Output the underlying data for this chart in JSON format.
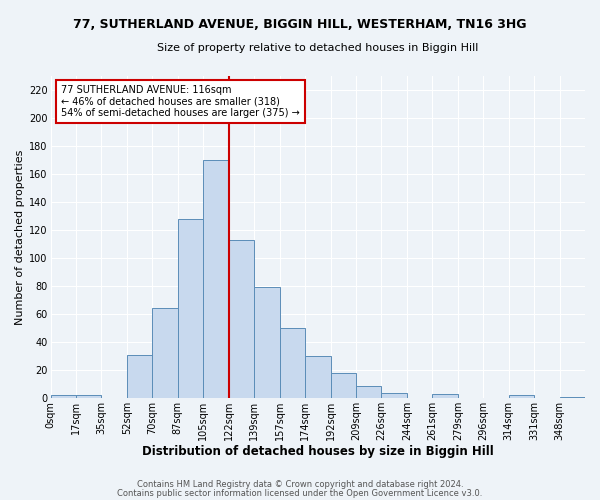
{
  "title_line1": "77, SUTHERLAND AVENUE, BIGGIN HILL, WESTERHAM, TN16 3HG",
  "title_line2": "Size of property relative to detached houses in Biggin Hill",
  "xlabel": "Distribution of detached houses by size in Biggin Hill",
  "ylabel": "Number of detached properties",
  "bin_labels": [
    "0sqm",
    "17sqm",
    "35sqm",
    "52sqm",
    "70sqm",
    "87sqm",
    "105sqm",
    "122sqm",
    "139sqm",
    "157sqm",
    "174sqm",
    "192sqm",
    "209sqm",
    "226sqm",
    "244sqm",
    "261sqm",
    "279sqm",
    "296sqm",
    "314sqm",
    "331sqm",
    "348sqm"
  ],
  "bar_values": [
    2,
    2,
    0,
    31,
    64,
    128,
    170,
    113,
    79,
    50,
    30,
    18,
    9,
    4,
    0,
    3,
    0,
    0,
    2,
    0,
    1
  ],
  "bar_color": "#c8d9ee",
  "bar_edge_color": "#5b8db8",
  "vline_x": 7,
  "vline_color": "#cc0000",
  "ylim": [
    0,
    230
  ],
  "yticks": [
    0,
    20,
    40,
    60,
    80,
    100,
    120,
    140,
    160,
    180,
    200,
    220
  ],
  "annotation_text_line1": "77 SUTHERLAND AVENUE: 116sqm",
  "annotation_text_line2": "← 46% of detached houses are smaller (318)",
  "annotation_text_line3": "54% of semi-detached houses are larger (375) →",
  "annotation_box_color": "#ffffff",
  "annotation_box_edge": "#cc0000",
  "footer_line1": "Contains HM Land Registry data © Crown copyright and database right 2024.",
  "footer_line2": "Contains public sector information licensed under the Open Government Licence v3.0.",
  "background_color": "#eef3f8",
  "plot_bg_color": "#eef3f8",
  "title_fontsize": 9,
  "subtitle_fontsize": 8,
  "xlabel_fontsize": 8.5,
  "ylabel_fontsize": 8,
  "tick_fontsize": 7,
  "annotation_fontsize": 7,
  "footer_fontsize": 6
}
